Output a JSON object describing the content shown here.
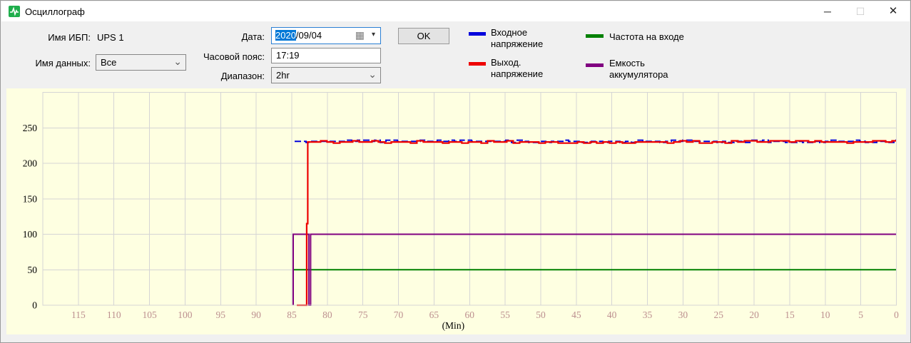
{
  "window": {
    "title": "Осциллограф",
    "controls": {
      "minimize": "─",
      "maximize": "☐",
      "close": "✕"
    }
  },
  "icons": {
    "combo_chevron": "⌄",
    "calendar": "▦",
    "calendar_arrow": "▾"
  },
  "form": {
    "ups_name_label": "Имя ИБП:",
    "ups_name_value": "UPS 1",
    "data_name_label": "Имя данных:",
    "data_name_value": "Все",
    "date_label": "Дата:",
    "date_selected_part": "2020",
    "date_rest_part": "/09/04",
    "timezone_label": "Часовой пояс:",
    "timezone_value": "17:19",
    "range_label": "Диапазон:",
    "range_value": "2hr",
    "ok_label": "OK"
  },
  "legend": [
    {
      "name": "input-voltage",
      "color": "#0000dc",
      "line1": "Входное",
      "line2": "напряжение"
    },
    {
      "name": "output-voltage",
      "color": "#ee0000",
      "line1": "Выход.",
      "line2": "напряжение"
    },
    {
      "name": "input-frequency",
      "color": "#008000",
      "line1": "Частота на входе",
      "line2": ""
    },
    {
      "name": "battery-capacity",
      "color": "#800080",
      "line1": "Емкость",
      "line2": "аккумулятора"
    }
  ],
  "chart_data": {
    "type": "line",
    "title": "",
    "xlabel": "(Min)",
    "ylabel": "",
    "x_reversed": true,
    "xlim": [
      120,
      0
    ],
    "ylim": [
      0,
      300
    ],
    "x_tick_step": 5,
    "x_ticks": [
      115,
      110,
      105,
      100,
      95,
      90,
      85,
      80,
      75,
      70,
      65,
      60,
      55,
      50,
      45,
      40,
      35,
      30,
      25,
      20,
      15,
      10,
      5,
      0
    ],
    "y_ticks": [
      0,
      50,
      100,
      150,
      200,
      250
    ],
    "grid": true,
    "colors": {
      "background": "#feffe1",
      "grid": "#d5d5d5",
      "x_tick_label": "#bc8f8f",
      "y_tick_label": "#000000",
      "axis_label": "#000000"
    },
    "legend_position": "top-outside",
    "series": [
      {
        "name": "Частота на входе",
        "color": "#008000",
        "width": 2,
        "points": [
          [
            84.8,
            50
          ],
          [
            0,
            50
          ]
        ]
      },
      {
        "name": "Емкость аккумулятора",
        "color": "#800080",
        "width": 2,
        "points": [
          [
            84.8,
            0
          ],
          [
            84.8,
            100
          ],
          [
            82.6,
            100
          ],
          [
            82.6,
            0
          ],
          [
            82.35,
            0
          ],
          [
            82.35,
            100
          ],
          [
            0,
            100
          ]
        ]
      },
      {
        "name": "Входное напряжение",
        "color": "#0000dc",
        "width": 2,
        "dash": "9 4",
        "points": [],
        "noisy_points": [
          [
            84.6,
            231
          ],
          [
            0,
            231
          ]
        ],
        "noise_amp": 1.6,
        "noise_step": 8,
        "seed": 7
      },
      {
        "name": "Выход. напряжение",
        "color": "#ee0000",
        "width": 2.2,
        "points": [
          [
            84.3,
            0
          ],
          [
            82.9,
            0
          ],
          [
            82.9,
            115
          ],
          [
            82.75,
            115
          ],
          [
            82.75,
            230
          ]
        ],
        "noisy_points": [
          [
            82.75,
            230
          ],
          [
            0,
            230
          ]
        ],
        "noise_amp": 1.6,
        "noise_step": 9,
        "seed": 99
      }
    ]
  }
}
